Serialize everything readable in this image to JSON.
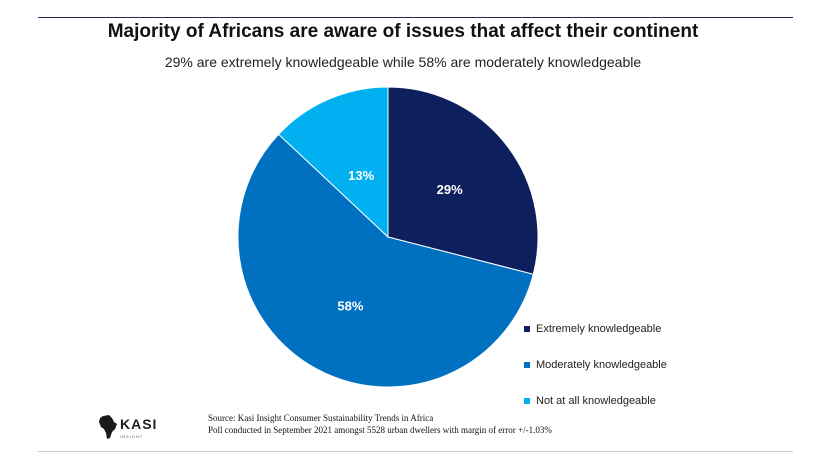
{
  "chart_data": {
    "type": "pie",
    "title": "Majority of Africans are aware of issues that affect their continent",
    "subtitle": "29% are extremely knowledgeable while 58% are moderately knowledgeable",
    "slices": [
      {
        "label": "Extremely knowledgeable",
        "value": 29,
        "display": "29%",
        "color": "#0d1f5c"
      },
      {
        "label": "Moderately knowledgeable",
        "value": 58,
        "display": "58%",
        "color": "#0070c0"
      },
      {
        "label": "Not at all knowledgeable",
        "value": 13,
        "display": "13%",
        "color": "#00b0f0"
      }
    ],
    "legend_position": "bottom-right"
  },
  "source": {
    "line1": "Source: Kasi Insight Consumer Sustainability Trends in Africa",
    "line2": "Poll conducted in September 2021 amongst 5528 urban dwellers with margin of error +/-1.03%"
  },
  "logo": {
    "text": "KASI",
    "subtext": "INSIGHT",
    "icon": "africa-map-icon"
  }
}
